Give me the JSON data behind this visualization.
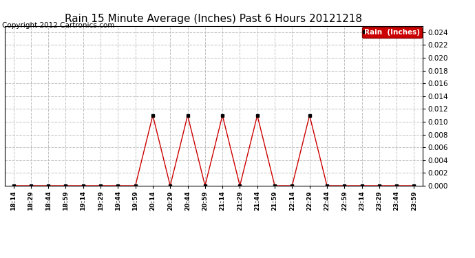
{
  "title": "Rain 15 Minute Average (Inches) Past 6 Hours 20121218",
  "copyright": "Copyright 2012 Cartronics.com",
  "legend_label": "Rain  (Inches)",
  "x_labels": [
    "18:14",
    "18:29",
    "18:44",
    "18:59",
    "19:14",
    "19:29",
    "19:44",
    "19:59",
    "20:14",
    "20:29",
    "20:44",
    "20:59",
    "21:14",
    "21:29",
    "21:44",
    "21:59",
    "22:14",
    "22:29",
    "22:44",
    "22:59",
    "23:14",
    "23:29",
    "23:44",
    "23:59"
  ],
  "y_values": [
    0.0,
    0.0,
    0.0,
    0.0,
    0.0,
    0.0,
    0.0,
    0.0,
    0.011,
    0.0,
    0.011,
    0.0,
    0.011,
    0.0,
    0.011,
    0.0,
    0.0,
    0.011,
    0.0,
    0.0,
    0.0,
    0.0,
    0.0,
    0.0
  ],
  "ylim": [
    0.0,
    0.025
  ],
  "yticks": [
    0.0,
    0.002,
    0.004,
    0.006,
    0.008,
    0.01,
    0.012,
    0.014,
    0.016,
    0.018,
    0.02,
    0.022,
    0.024
  ],
  "line_color": "#cc0000",
  "marker_color": "#000000",
  "background_color": "#ffffff",
  "grid_color": "#c0c0c0",
  "title_fontsize": 11,
  "copyright_fontsize": 7.5,
  "legend_bg": "#cc0000",
  "legend_text_color": "#ffffff"
}
